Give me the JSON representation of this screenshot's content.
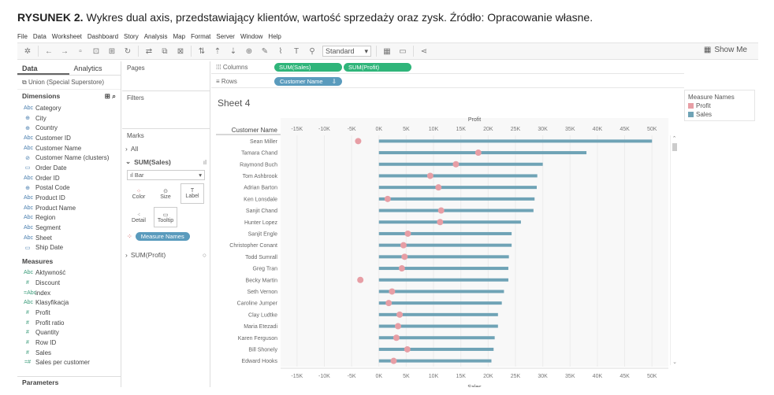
{
  "caption": {
    "prefix": "RYSUNEK 2.",
    "text": "Wykres dual axis, przedstawiający klientów, wartość sprzedaży oraz zysk. Źródło: Opracowanie własne."
  },
  "menu": [
    "File",
    "Data",
    "Worksheet",
    "Dashboard",
    "Story",
    "Analysis",
    "Map",
    "Format",
    "Server",
    "Window",
    "Help"
  ],
  "toolbar": {
    "fit_select": "Standard",
    "show_me": "Show Me"
  },
  "data_pane": {
    "tabs": [
      "Data",
      "Analytics"
    ],
    "source": "Union (Special Superstore)",
    "dimensions_label": "Dimensions",
    "dimensions": [
      {
        "icon": "Abc",
        "label": "Category"
      },
      {
        "icon": "⊕",
        "label": "City"
      },
      {
        "icon": "⊕",
        "label": "Country"
      },
      {
        "icon": "Abc",
        "label": "Customer ID"
      },
      {
        "icon": "Abc",
        "label": "Customer Name"
      },
      {
        "icon": "⊘",
        "label": "Customer Name (clusters)"
      },
      {
        "icon": "▭",
        "label": "Order Date"
      },
      {
        "icon": "Abc",
        "label": "Order ID"
      },
      {
        "icon": "⊕",
        "label": "Postal Code"
      },
      {
        "icon": "Abc",
        "label": "Product ID"
      },
      {
        "icon": "Abc",
        "label": "Product Name"
      },
      {
        "icon": "Abc",
        "label": "Region"
      },
      {
        "icon": "Abc",
        "label": "Segment"
      },
      {
        "icon": "Abc",
        "label": "Sheet"
      },
      {
        "icon": "▭",
        "label": "Ship Date"
      }
    ],
    "measures_label": "Measures",
    "measures": [
      {
        "icon": "Abc",
        "label": "Aktywność"
      },
      {
        "icon": "#",
        "label": "Discount"
      },
      {
        "icon": "=Abc",
        "label": "index"
      },
      {
        "icon": "Abc",
        "label": "Klasyfikacja"
      },
      {
        "icon": "#",
        "label": "Profit"
      },
      {
        "icon": "#",
        "label": "Profit ratio"
      },
      {
        "icon": "#",
        "label": "Quantity"
      },
      {
        "icon": "#",
        "label": "Row ID"
      },
      {
        "icon": "#",
        "label": "Sales"
      },
      {
        "icon": "=#",
        "label": "Sales per customer"
      }
    ],
    "parameters_label": "Parameters"
  },
  "shelves": {
    "pages_label": "Pages",
    "filters_label": "Filters",
    "marks_label": "Marks",
    "all_label": "All",
    "sum_sales_label": "SUM(Sales)",
    "mark_type": "Bar",
    "mark_buttons": [
      {
        "icon": "color-icon",
        "label": "Color"
      },
      {
        "icon": "size-icon",
        "label": "Size"
      },
      {
        "icon": "label-icon",
        "label": "Label"
      },
      {
        "icon": "detail-icon",
        "label": "Detail"
      },
      {
        "icon": "tooltip-icon",
        "label": "Tooltip"
      }
    ],
    "measure_names_pill": "Measure Names",
    "sum_profit_label": "SUM(Profit)",
    "columns_label": "Columns",
    "rows_label": "Rows",
    "columns_pills": [
      "SUM(Sales)",
      "SUM(Profit)"
    ],
    "rows_pill": "Customer Name"
  },
  "sheet_title": "Sheet 4",
  "legend": {
    "title": "Measure Names",
    "items": [
      {
        "label": "Profit",
        "color": "#e79ea5"
      },
      {
        "label": "Sales",
        "color": "#6fa3b6"
      }
    ]
  },
  "chart_data": {
    "type": "bar",
    "row_header": "Customer Name",
    "top_axis_title": "Profit",
    "bottom_axis_title": "Sales",
    "xlim": [
      -18000,
      53000
    ],
    "ticks": [
      -15000,
      -10000,
      -5000,
      0,
      5000,
      10000,
      15000,
      20000,
      25000,
      30000,
      35000,
      40000,
      45000,
      50000
    ],
    "tick_labels": [
      "-15K",
      "-10K",
      "-5K",
      "0K",
      "5K",
      "10K",
      "15K",
      "20K",
      "25K",
      "30K",
      "35K",
      "40K",
      "45K",
      "50K"
    ],
    "categories": [
      "Sean Miller",
      "Tamara Chand",
      "Raymond Buch",
      "Tom Ashbrook",
      "Adrian Barton",
      "Ken Lonsdale",
      "Sanjit Chand",
      "Hunter Lopez",
      "Sanjit Engle",
      "Christopher Conant",
      "Todd Sumrall",
      "Greg Tran",
      "Becky Martin",
      "Seth Vernon",
      "Caroline Jumper",
      "Clay Ludtke",
      "Maria Etezadi",
      "Karen Ferguson",
      "Bill Shonely",
      "Edward Hooks"
    ],
    "series": [
      {
        "name": "Sales",
        "color": "#6fa3b6",
        "values": [
          50000,
          38000,
          30000,
          29000,
          28900,
          28500,
          28300,
          26000,
          24300,
          24300,
          23800,
          23700,
          23700,
          22900,
          22500,
          21800,
          21800,
          21200,
          21000,
          20600
        ]
      },
      {
        "name": "Profit",
        "color": "#e79ea5",
        "values": [
          -3800,
          18200,
          14100,
          9400,
          10900,
          1600,
          11400,
          11200,
          5300,
          4500,
          4700,
          4200,
          -3400,
          2400,
          1800,
          3800,
          3500,
          3200,
          5200,
          2700
        ]
      }
    ]
  }
}
